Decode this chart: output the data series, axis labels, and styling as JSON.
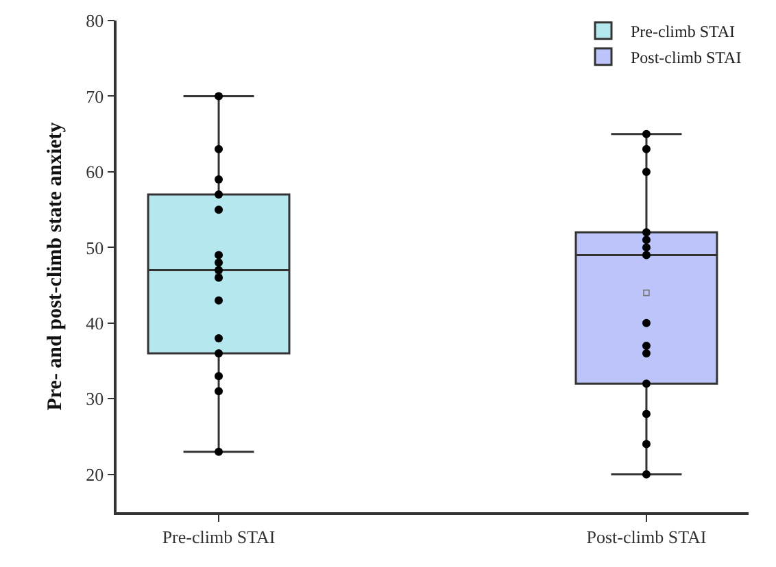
{
  "chart_data": {
    "type": "box",
    "ylabel": "Pre- and post-climb state anxiety",
    "categories": [
      "Pre-climb STAI",
      "Post-climb STAI"
    ],
    "series": [
      {
        "type": "box",
        "name": "Pre-climb STAI",
        "color": "#b5e8ee",
        "boxes": [
          {
            "low": 23,
            "q1": 36,
            "median": 47,
            "q3": 57,
            "high": 70,
            "mean": 46.6
          },
          null
        ]
      },
      {
        "type": "box",
        "name": "Post-climb STAI",
        "color": "#bcc4fa",
        "boxes": [
          null,
          {
            "low": 20,
            "q1": 32,
            "median": 49,
            "q3": 52,
            "high": 65,
            "mean": 44
          }
        ]
      },
      {
        "type": "scatter",
        "color": "#000000",
        "x": [
          "Pre-climb STAI",
          "Pre-climb STAI",
          "Pre-climb STAI",
          "Pre-climb STAI",
          "Pre-climb STAI",
          "Pre-climb STAI",
          "Pre-climb STAI",
          "Pre-climb STAI",
          "Pre-climb STAI",
          "Pre-climb STAI",
          "Pre-climb STAI",
          "Pre-climb STAI",
          "Pre-climb STAI",
          "Pre-climb STAI",
          "Pre-climb STAI",
          "Post-climb STAI",
          "Post-climb STAI",
          "Post-climb STAI",
          "Post-climb STAI",
          "Post-climb STAI",
          "Post-climb STAI",
          "Post-climb STAI",
          "Post-climb STAI",
          "Post-climb STAI",
          "Post-climb STAI",
          "Post-climb STAI",
          "Post-climb STAI",
          "Post-climb STAI",
          "Post-climb STAI"
        ],
        "values": [
          70,
          63,
          59,
          57,
          55,
          49,
          48,
          47,
          46,
          43,
          38,
          36,
          33,
          31,
          23,
          65,
          63,
          60,
          52,
          51,
          50,
          49,
          40,
          37,
          36,
          32,
          28,
          24,
          20
        ]
      }
    ],
    "ylim": [
      15,
      80
    ],
    "yticks": [
      20,
      30,
      40,
      50,
      60,
      70,
      80
    ],
    "legend": "top right",
    "marker": "circle"
  }
}
